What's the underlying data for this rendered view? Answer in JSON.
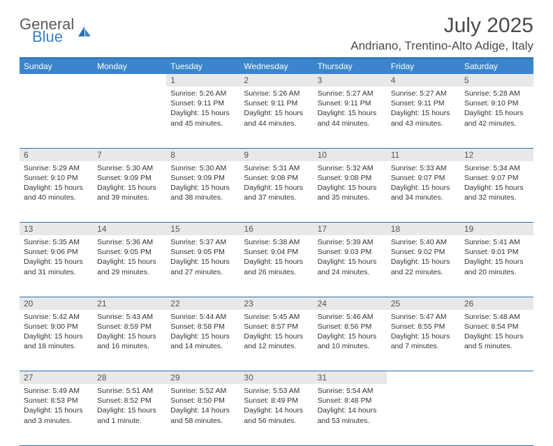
{
  "logo": {
    "general": "General",
    "blue": "Blue"
  },
  "title": "July 2025",
  "location": "Andriano, Trentino-Alto Adige, Italy",
  "header_bg": "#3a85cc",
  "rule_color": "#2d6fb0",
  "daynum_bg": "#e8e8e8",
  "days_of_week": [
    "Sunday",
    "Monday",
    "Tuesday",
    "Wednesday",
    "Thursday",
    "Friday",
    "Saturday"
  ],
  "weeks": [
    [
      null,
      null,
      {
        "n": "1",
        "sunrise": "5:26 AM",
        "sunset": "9:11 PM",
        "daylight": "15 hours and 45 minutes."
      },
      {
        "n": "2",
        "sunrise": "5:26 AM",
        "sunset": "9:11 PM",
        "daylight": "15 hours and 44 minutes."
      },
      {
        "n": "3",
        "sunrise": "5:27 AM",
        "sunset": "9:11 PM",
        "daylight": "15 hours and 44 minutes."
      },
      {
        "n": "4",
        "sunrise": "5:27 AM",
        "sunset": "9:11 PM",
        "daylight": "15 hours and 43 minutes."
      },
      {
        "n": "5",
        "sunrise": "5:28 AM",
        "sunset": "9:10 PM",
        "daylight": "15 hours and 42 minutes."
      }
    ],
    [
      {
        "n": "6",
        "sunrise": "5:29 AM",
        "sunset": "9:10 PM",
        "daylight": "15 hours and 40 minutes."
      },
      {
        "n": "7",
        "sunrise": "5:30 AM",
        "sunset": "9:09 PM",
        "daylight": "15 hours and 39 minutes."
      },
      {
        "n": "8",
        "sunrise": "5:30 AM",
        "sunset": "9:09 PM",
        "daylight": "15 hours and 38 minutes."
      },
      {
        "n": "9",
        "sunrise": "5:31 AM",
        "sunset": "9:08 PM",
        "daylight": "15 hours and 37 minutes."
      },
      {
        "n": "10",
        "sunrise": "5:32 AM",
        "sunset": "9:08 PM",
        "daylight": "15 hours and 35 minutes."
      },
      {
        "n": "11",
        "sunrise": "5:33 AM",
        "sunset": "9:07 PM",
        "daylight": "15 hours and 34 minutes."
      },
      {
        "n": "12",
        "sunrise": "5:34 AM",
        "sunset": "9:07 PM",
        "daylight": "15 hours and 32 minutes."
      }
    ],
    [
      {
        "n": "13",
        "sunrise": "5:35 AM",
        "sunset": "9:06 PM",
        "daylight": "15 hours and 31 minutes."
      },
      {
        "n": "14",
        "sunrise": "5:36 AM",
        "sunset": "9:05 PM",
        "daylight": "15 hours and 29 minutes."
      },
      {
        "n": "15",
        "sunrise": "5:37 AM",
        "sunset": "9:05 PM",
        "daylight": "15 hours and 27 minutes."
      },
      {
        "n": "16",
        "sunrise": "5:38 AM",
        "sunset": "9:04 PM",
        "daylight": "15 hours and 26 minutes."
      },
      {
        "n": "17",
        "sunrise": "5:39 AM",
        "sunset": "9:03 PM",
        "daylight": "15 hours and 24 minutes."
      },
      {
        "n": "18",
        "sunrise": "5:40 AM",
        "sunset": "9:02 PM",
        "daylight": "15 hours and 22 minutes."
      },
      {
        "n": "19",
        "sunrise": "5:41 AM",
        "sunset": "9:01 PM",
        "daylight": "15 hours and 20 minutes."
      }
    ],
    [
      {
        "n": "20",
        "sunrise": "5:42 AM",
        "sunset": "9:00 PM",
        "daylight": "15 hours and 18 minutes."
      },
      {
        "n": "21",
        "sunrise": "5:43 AM",
        "sunset": "8:59 PM",
        "daylight": "15 hours and 16 minutes."
      },
      {
        "n": "22",
        "sunrise": "5:44 AM",
        "sunset": "8:58 PM",
        "daylight": "15 hours and 14 minutes."
      },
      {
        "n": "23",
        "sunrise": "5:45 AM",
        "sunset": "8:57 PM",
        "daylight": "15 hours and 12 minutes."
      },
      {
        "n": "24",
        "sunrise": "5:46 AM",
        "sunset": "8:56 PM",
        "daylight": "15 hours and 10 minutes."
      },
      {
        "n": "25",
        "sunrise": "5:47 AM",
        "sunset": "8:55 PM",
        "daylight": "15 hours and 7 minutes."
      },
      {
        "n": "26",
        "sunrise": "5:48 AM",
        "sunset": "8:54 PM",
        "daylight": "15 hours and 5 minutes."
      }
    ],
    [
      {
        "n": "27",
        "sunrise": "5:49 AM",
        "sunset": "8:53 PM",
        "daylight": "15 hours and 3 minutes."
      },
      {
        "n": "28",
        "sunrise": "5:51 AM",
        "sunset": "8:52 PM",
        "daylight": "15 hours and 1 minute."
      },
      {
        "n": "29",
        "sunrise": "5:52 AM",
        "sunset": "8:50 PM",
        "daylight": "14 hours and 58 minutes."
      },
      {
        "n": "30",
        "sunrise": "5:53 AM",
        "sunset": "8:49 PM",
        "daylight": "14 hours and 56 minutes."
      },
      {
        "n": "31",
        "sunrise": "5:54 AM",
        "sunset": "8:48 PM",
        "daylight": "14 hours and 53 minutes."
      },
      null,
      null
    ]
  ]
}
